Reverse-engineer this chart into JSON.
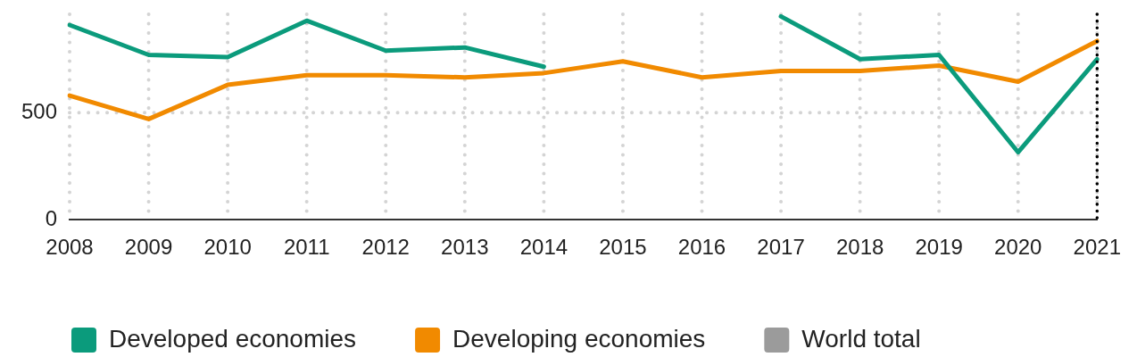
{
  "chart_data": {
    "type": "line",
    "categories": [
      "2008",
      "2009",
      "2010",
      "2011",
      "2012",
      "2013",
      "2014",
      "2015",
      "2016",
      "2017",
      "2018",
      "2019",
      "2020",
      "2021"
    ],
    "series": [
      {
        "name": "Developed economies",
        "color": "#0b9b7c",
        "values": [
          910,
          770,
          760,
          930,
          790,
          805,
          715,
          null,
          null,
          950,
          750,
          770,
          315,
          750
        ]
      },
      {
        "name": "Developing economies",
        "color": "#f18a00",
        "values": [
          580,
          470,
          630,
          675,
          675,
          665,
          685,
          740,
          665,
          695,
          695,
          720,
          645,
          835
        ]
      },
      {
        "name": "World total",
        "color": "#9b9b9b",
        "values": [
          null,
          null,
          null,
          null,
          null,
          null,
          null,
          null,
          null,
          null,
          null,
          null,
          null,
          null
        ]
      }
    ],
    "ylim": [
      0,
      960
    ],
    "yticks": [
      0,
      500
    ],
    "grid": true,
    "legend": "bottom left",
    "marker": "none",
    "line_style": "solid",
    "ref_lines": [
      {
        "axis": "x",
        "value": "2021",
        "color": "#000000",
        "line_style": "dotted"
      }
    ]
  }
}
